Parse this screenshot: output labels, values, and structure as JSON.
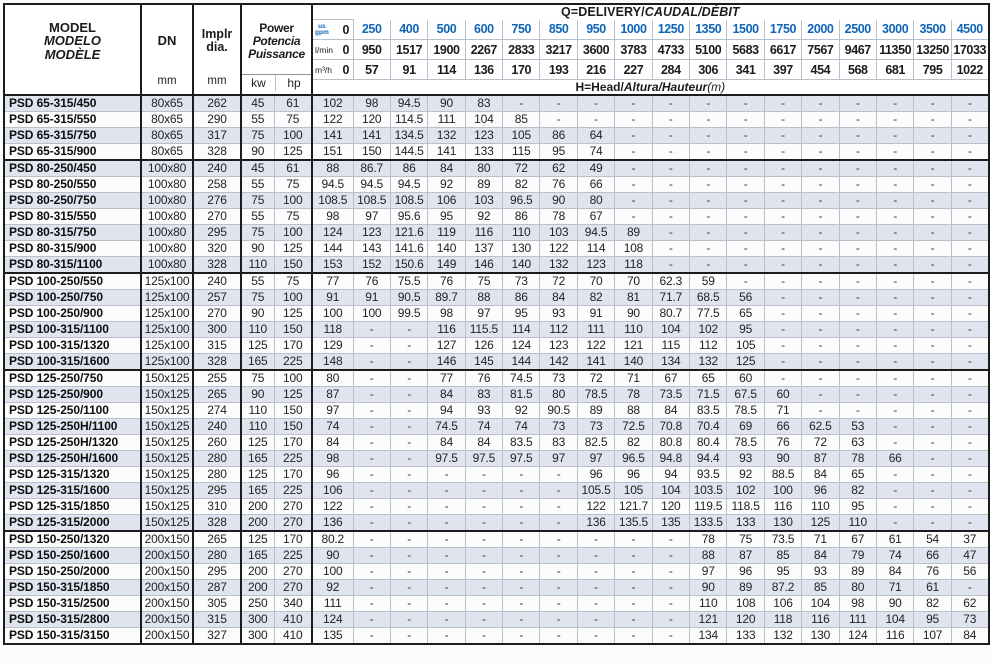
{
  "colors": {
    "accent_blue": "#0f65b8",
    "row_shade": "#dfe4ef"
  },
  "table": {
    "header": {
      "model": {
        "l1": "MODEL",
        "l2": "MODELO",
        "l3": "MODÈLE"
      },
      "dn": {
        "label": "DN",
        "unit": "mm"
      },
      "impeller": {
        "l1": "Implr",
        "l2": "dia.",
        "unit": "mm"
      },
      "power": {
        "l1": "Power",
        "l2": "Potencia",
        "l3": "Puissance",
        "kw": "kw",
        "hp": "hp"
      },
      "q_title": {
        "plain": "Q=DELIVERY/",
        "accent": "CAUDAL/DÉBIT"
      },
      "h_title": {
        "plain": "H=Head/",
        "accent": "Altura/Hauteur",
        "suffix": "(m)"
      },
      "units": {
        "gpm_top": "us",
        "gpm_bottom": "gpm",
        "lmin": "l/min",
        "m3h": "m³/h"
      }
    },
    "flow": {
      "gpm": [
        "0",
        "250",
        "400",
        "500",
        "600",
        "750",
        "850",
        "950",
        "1000",
        "1250",
        "1350",
        "1500",
        "1750",
        "2000",
        "2500",
        "3000",
        "3500",
        "4500"
      ],
      "lmin": [
        "0",
        "950",
        "1517",
        "1900",
        "2267",
        "2833",
        "3217",
        "3600",
        "3783",
        "4733",
        "5100",
        "5683",
        "6617",
        "7567",
        "9467",
        "11350",
        "13250",
        "17033"
      ],
      "m3h": [
        "0",
        "57",
        "91",
        "114",
        "136",
        "170",
        "193",
        "216",
        "227",
        "284",
        "306",
        "341",
        "397",
        "454",
        "568",
        "681",
        "795",
        "1022"
      ]
    },
    "rows": [
      {
        "model": "PSD 65-315/450",
        "dn": "80x65",
        "dia": "262",
        "kw": "45",
        "hp": "61",
        "head": [
          "102",
          "98",
          "94.5",
          "90",
          "83",
          "-",
          "-",
          "-",
          "-",
          "-",
          "-",
          "-",
          "-",
          "-",
          "-",
          "-",
          "-",
          "-"
        ]
      },
      {
        "model": "PSD 65-315/550",
        "dn": "80x65",
        "dia": "290",
        "kw": "55",
        "hp": "75",
        "head": [
          "122",
          "120",
          "114.5",
          "111",
          "104",
          "85",
          "-",
          "-",
          "-",
          "-",
          "-",
          "-",
          "-",
          "-",
          "-",
          "-",
          "-",
          "-"
        ]
      },
      {
        "model": "PSD 65-315/750",
        "dn": "80x65",
        "dia": "317",
        "kw": "75",
        "hp": "100",
        "head": [
          "141",
          "141",
          "134.5",
          "132",
          "123",
          "105",
          "86",
          "64",
          "-",
          "-",
          "-",
          "-",
          "-",
          "-",
          "-",
          "-",
          "-",
          "-"
        ]
      },
      {
        "model": "PSD 65-315/900",
        "dn": "80x65",
        "dia": "328",
        "kw": "90",
        "hp": "125",
        "head": [
          "151",
          "150",
          "144.5",
          "141",
          "133",
          "115",
          "95",
          "74",
          "-",
          "-",
          "-",
          "-",
          "-",
          "-",
          "-",
          "-",
          "-",
          "-"
        ],
        "group_end": true
      },
      {
        "model": "PSD 80-250/450",
        "dn": "100x80",
        "dia": "240",
        "kw": "45",
        "hp": "61",
        "head": [
          "88",
          "86.7",
          "86",
          "84",
          "80",
          "72",
          "62",
          "49",
          "-",
          "-",
          "-",
          "-",
          "-",
          "-",
          "-",
          "-",
          "-",
          "-"
        ]
      },
      {
        "model": "PSD 80-250/550",
        "dn": "100x80",
        "dia": "258",
        "kw": "55",
        "hp": "75",
        "head": [
          "94.5",
          "94.5",
          "94.5",
          "92",
          "89",
          "82",
          "76",
          "66",
          "-",
          "-",
          "-",
          "-",
          "-",
          "-",
          "-",
          "-",
          "-",
          "-"
        ]
      },
      {
        "model": "PSD 80-250/750",
        "dn": "100x80",
        "dia": "276",
        "kw": "75",
        "hp": "100",
        "head": [
          "108.5",
          "108.5",
          "108.5",
          "106",
          "103",
          "96.5",
          "90",
          "80",
          "-",
          "-",
          "-",
          "-",
          "-",
          "-",
          "-",
          "-",
          "-",
          "-"
        ]
      },
      {
        "model": "PSD 80-315/550",
        "dn": "100x80",
        "dia": "270",
        "kw": "55",
        "hp": "75",
        "head": [
          "98",
          "97",
          "95.6",
          "95",
          "92",
          "86",
          "78",
          "67",
          "-",
          "-",
          "-",
          "-",
          "-",
          "-",
          "-",
          "-",
          "-",
          "-"
        ]
      },
      {
        "model": "PSD 80-315/750",
        "dn": "100x80",
        "dia": "295",
        "kw": "75",
        "hp": "100",
        "head": [
          "124",
          "123",
          "121.6",
          "119",
          "116",
          "110",
          "103",
          "94.5",
          "89",
          "-",
          "-",
          "-",
          "-",
          "-",
          "-",
          "-",
          "-",
          "-"
        ]
      },
      {
        "model": "PSD 80-315/900",
        "dn": "100x80",
        "dia": "320",
        "kw": "90",
        "hp": "125",
        "head": [
          "144",
          "143",
          "141.6",
          "140",
          "137",
          "130",
          "122",
          "114",
          "108",
          "-",
          "-",
          "-",
          "-",
          "-",
          "-",
          "-",
          "-",
          "-"
        ]
      },
      {
        "model": "PSD 80-315/1100",
        "dn": "100x80",
        "dia": "328",
        "kw": "110",
        "hp": "150",
        "head": [
          "153",
          "152",
          "150.6",
          "149",
          "146",
          "140",
          "132",
          "123",
          "118",
          "-",
          "-",
          "-",
          "-",
          "-",
          "-",
          "-",
          "-",
          "-"
        ],
        "group_end": true
      },
      {
        "model": "PSD 100-250/550",
        "dn": "125x100",
        "dia": "240",
        "kw": "55",
        "hp": "75",
        "head": [
          "77",
          "76",
          "75.5",
          "76",
          "75",
          "73",
          "72",
          "70",
          "70",
          "62.3",
          "59",
          "-",
          "-",
          "-",
          "-",
          "-",
          "-",
          "-"
        ]
      },
      {
        "model": "PSD 100-250/750",
        "dn": "125x100",
        "dia": "257",
        "kw": "75",
        "hp": "100",
        "head": [
          "91",
          "91",
          "90.5",
          "89.7",
          "88",
          "86",
          "84",
          "82",
          "81",
          "71.7",
          "68.5",
          "56",
          "-",
          "-",
          "-",
          "-",
          "-",
          "-"
        ]
      },
      {
        "model": "PSD 100-250/900",
        "dn": "125x100",
        "dia": "270",
        "kw": "90",
        "hp": "125",
        "head": [
          "100",
          "100",
          "99.5",
          "98",
          "97",
          "95",
          "93",
          "91",
          "90",
          "80.7",
          "77.5",
          "65",
          "-",
          "-",
          "-",
          "-",
          "-",
          "-"
        ]
      },
      {
        "model": "PSD 100-315/1100",
        "dn": "125x100",
        "dia": "300",
        "kw": "110",
        "hp": "150",
        "head": [
          "118",
          "-",
          "-",
          "116",
          "115.5",
          "114",
          "112",
          "111",
          "110",
          "104",
          "102",
          "95",
          "-",
          "-",
          "-",
          "-",
          "-",
          "-"
        ]
      },
      {
        "model": "PSD 100-315/1320",
        "dn": "125x100",
        "dia": "315",
        "kw": "125",
        "hp": "170",
        "head": [
          "129",
          "-",
          "-",
          "127",
          "126",
          "124",
          "123",
          "122",
          "121",
          "115",
          "112",
          "105",
          "-",
          "-",
          "-",
          "-",
          "-",
          "-"
        ]
      },
      {
        "model": "PSD 100-315/1600",
        "dn": "125x100",
        "dia": "328",
        "kw": "165",
        "hp": "225",
        "head": [
          "148",
          "-",
          "-",
          "146",
          "145",
          "144",
          "142",
          "141",
          "140",
          "134",
          "132",
          "125",
          "-",
          "-",
          "-",
          "-",
          "-",
          "-"
        ],
        "group_end": true
      },
      {
        "model": "PSD 125-250/750",
        "dn": "150x125",
        "dia": "255",
        "kw": "75",
        "hp": "100",
        "head": [
          "80",
          "-",
          "-",
          "77",
          "76",
          "74.5",
          "73",
          "72",
          "71",
          "67",
          "65",
          "60",
          "-",
          "-",
          "-",
          "-",
          "-",
          "-"
        ]
      },
      {
        "model": "PSD 125-250/900",
        "dn": "150x125",
        "dia": "265",
        "kw": "90",
        "hp": "125",
        "head": [
          "87",
          "-",
          "-",
          "84",
          "83",
          "81.5",
          "80",
          "78.5",
          "78",
          "73.5",
          "71.5",
          "67.5",
          "60",
          "-",
          "-",
          "-",
          "-",
          "-"
        ]
      },
      {
        "model": "PSD 125-250/1100",
        "dn": "150x125",
        "dia": "274",
        "kw": "110",
        "hp": "150",
        "head": [
          "97",
          "-",
          "-",
          "94",
          "93",
          "92",
          "90.5",
          "89",
          "88",
          "84",
          "83.5",
          "78.5",
          "71",
          "-",
          "-",
          "-",
          "-",
          "-"
        ]
      },
      {
        "model": "PSD 125-250H/1100",
        "dn": "150x125",
        "dia": "240",
        "kw": "110",
        "hp": "150",
        "head": [
          "74",
          "-",
          "-",
          "74.5",
          "74",
          "74",
          "73",
          "73",
          "72.5",
          "70.8",
          "70.4",
          "69",
          "66",
          "62.5",
          "53",
          "-",
          "-",
          "-"
        ]
      },
      {
        "model": "PSD 125-250H/1320",
        "dn": "150x125",
        "dia": "260",
        "kw": "125",
        "hp": "170",
        "head": [
          "84",
          "-",
          "-",
          "84",
          "84",
          "83.5",
          "83",
          "82.5",
          "82",
          "80.8",
          "80.4",
          "78.5",
          "76",
          "72",
          "63",
          "-",
          "-",
          "-"
        ]
      },
      {
        "model": "PSD 125-250H/1600",
        "dn": "150x125",
        "dia": "280",
        "kw": "165",
        "hp": "225",
        "head": [
          "98",
          "-",
          "-",
          "97.5",
          "97.5",
          "97.5",
          "97",
          "97",
          "96.5",
          "94.8",
          "94.4",
          "93",
          "90",
          "87",
          "78",
          "66",
          "-",
          "-"
        ]
      },
      {
        "model": "PSD 125-315/1320",
        "dn": "150x125",
        "dia": "280",
        "kw": "125",
        "hp": "170",
        "head": [
          "96",
          "-",
          "-",
          "-",
          "-",
          "-",
          "-",
          "96",
          "96",
          "94",
          "93.5",
          "92",
          "88.5",
          "84",
          "65",
          "-",
          "-",
          "-"
        ]
      },
      {
        "model": "PSD 125-315/1600",
        "dn": "150x125",
        "dia": "295",
        "kw": "165",
        "hp": "225",
        "head": [
          "106",
          "-",
          "-",
          "-",
          "-",
          "-",
          "-",
          "105.5",
          "105",
          "104",
          "103.5",
          "102",
          "100",
          "96",
          "82",
          "-",
          "-",
          "-"
        ]
      },
      {
        "model": "PSD 125-315/1850",
        "dn": "150x125",
        "dia": "310",
        "kw": "200",
        "hp": "270",
        "head": [
          "122",
          "-",
          "-",
          "-",
          "-",
          "-",
          "-",
          "122",
          "121.7",
          "120",
          "119.5",
          "118.5",
          "116",
          "110",
          "95",
          "-",
          "-",
          "-"
        ]
      },
      {
        "model": "PSD 125-315/2000",
        "dn": "150x125",
        "dia": "328",
        "kw": "200",
        "hp": "270",
        "head": [
          "136",
          "-",
          "-",
          "-",
          "-",
          "-",
          "-",
          "136",
          "135.5",
          "135",
          "133.5",
          "133",
          "130",
          "125",
          "110",
          "-",
          "-",
          "-"
        ],
        "group_end": true
      },
      {
        "model": "PSD 150-250/1320",
        "dn": "200x150",
        "dia": "265",
        "kw": "125",
        "hp": "170",
        "head": [
          "80.2",
          "-",
          "-",
          "-",
          "-",
          "-",
          "-",
          "-",
          "-",
          "-",
          "78",
          "75",
          "73.5",
          "71",
          "67",
          "61",
          "54",
          "37"
        ]
      },
      {
        "model": "PSD 150-250/1600",
        "dn": "200x150",
        "dia": "280",
        "kw": "165",
        "hp": "225",
        "head": [
          "90",
          "-",
          "-",
          "-",
          "-",
          "-",
          "-",
          "-",
          "-",
          "-",
          "88",
          "87",
          "85",
          "84",
          "79",
          "74",
          "66",
          "47"
        ]
      },
      {
        "model": "PSD 150-250/2000",
        "dn": "200x150",
        "dia": "295",
        "kw": "200",
        "hp": "270",
        "head": [
          "100",
          "-",
          "-",
          "-",
          "-",
          "-",
          "-",
          "-",
          "-",
          "-",
          "97",
          "96",
          "95",
          "93",
          "89",
          "84",
          "76",
          "56"
        ]
      },
      {
        "model": "PSD 150-315/1850",
        "dn": "200x150",
        "dia": "287",
        "kw": "200",
        "hp": "270",
        "head": [
          "92",
          "-",
          "-",
          "-",
          "-",
          "-",
          "-",
          "-",
          "-",
          "-",
          "90",
          "89",
          "87.2",
          "85",
          "80",
          "71",
          "61",
          "-"
        ]
      },
      {
        "model": "PSD 150-315/2500",
        "dn": "200x150",
        "dia": "305",
        "kw": "250",
        "hp": "340",
        "head": [
          "111",
          "-",
          "-",
          "-",
          "-",
          "-",
          "-",
          "-",
          "-",
          "-",
          "110",
          "108",
          "106",
          "104",
          "98",
          "90",
          "82",
          "62"
        ]
      },
      {
        "model": "PSD 150-315/2800",
        "dn": "200x150",
        "dia": "315",
        "kw": "300",
        "hp": "410",
        "head": [
          "124",
          "-",
          "-",
          "-",
          "-",
          "-",
          "-",
          "-",
          "-",
          "-",
          "121",
          "120",
          "118",
          "116",
          "111",
          "104",
          "95",
          "73"
        ]
      },
      {
        "model": "PSD 150-315/3150",
        "dn": "200x150",
        "dia": "327",
        "kw": "300",
        "hp": "410",
        "head": [
          "135",
          "-",
          "-",
          "-",
          "-",
          "-",
          "-",
          "-",
          "-",
          "-",
          "134",
          "133",
          "132",
          "130",
          "124",
          "116",
          "107",
          "84"
        ]
      }
    ]
  }
}
